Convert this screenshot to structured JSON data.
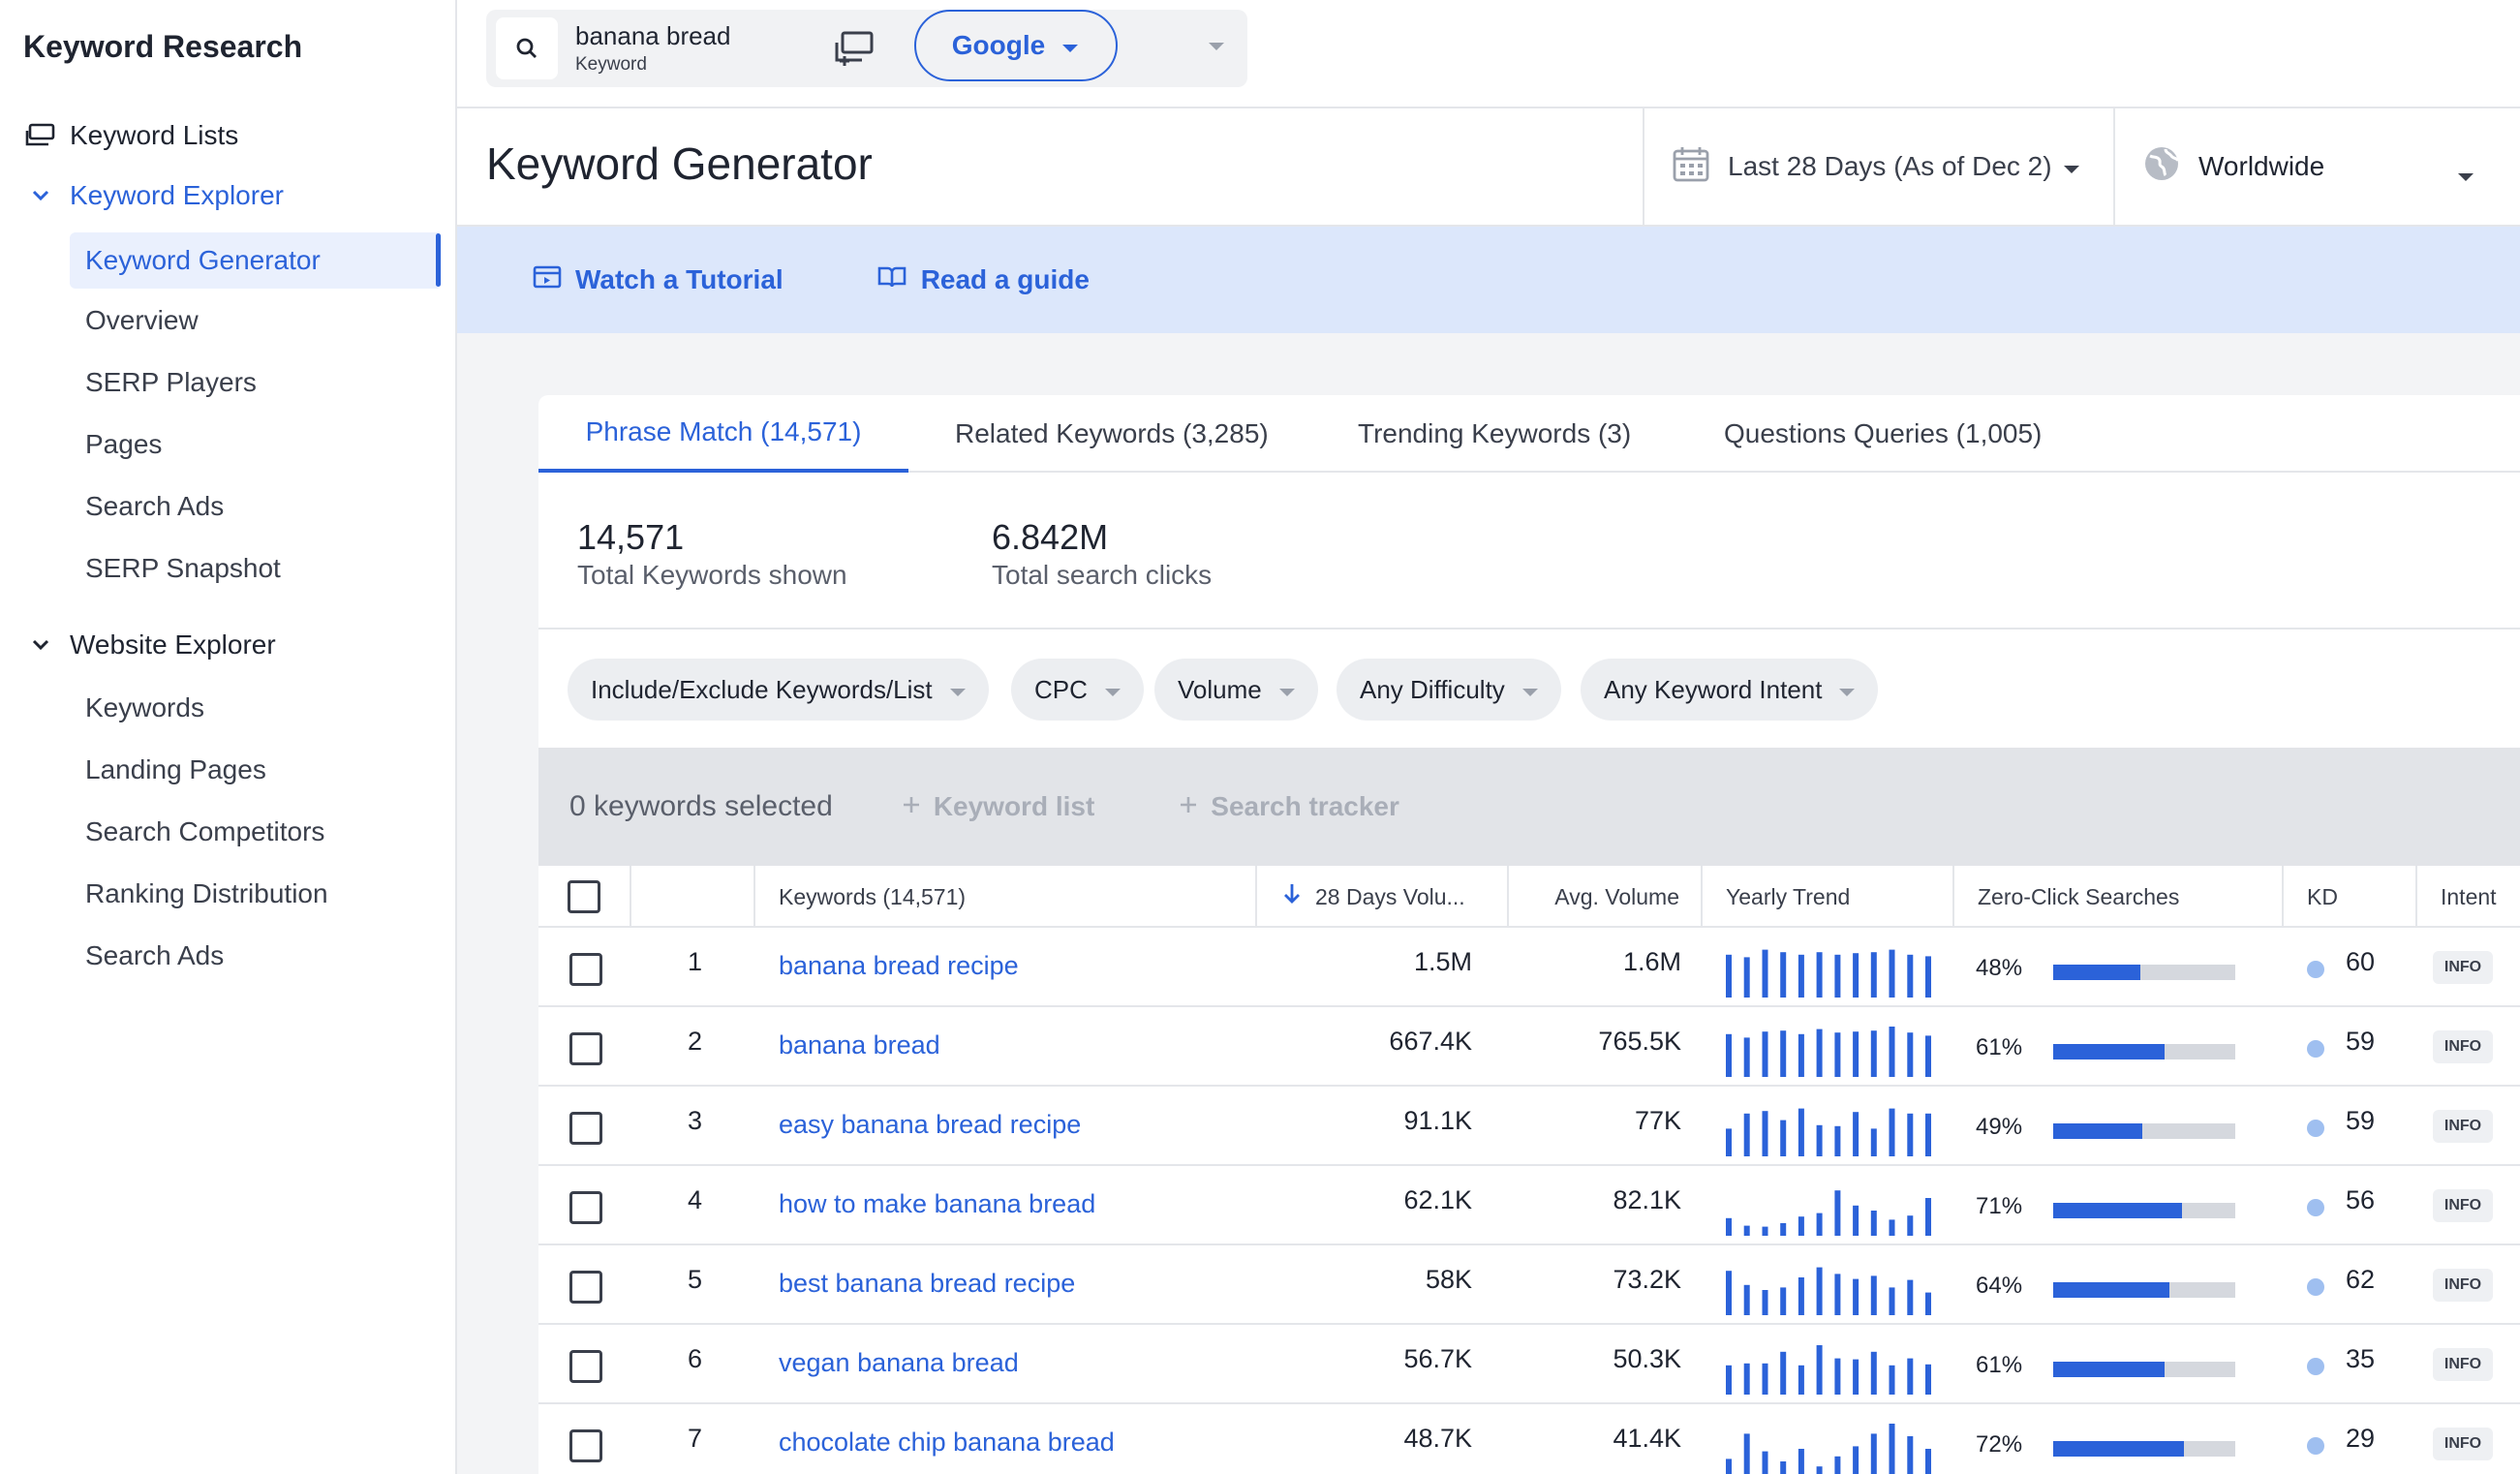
{
  "sidebar": {
    "title": "Keyword Research",
    "keyword_lists": "Keyword Lists",
    "keyword_explorer": "Keyword Explorer",
    "explorer_items": [
      "Keyword Generator",
      "Overview",
      "SERP Players",
      "Pages",
      "Search Ads",
      "SERP Snapshot"
    ],
    "website_explorer": "Website Explorer",
    "website_items": [
      "Keywords",
      "Landing Pages",
      "Search Competitors",
      "Ranking Distribution",
      "Search Ads"
    ]
  },
  "topbar": {
    "search_value": "banana bread",
    "search_label": "Keyword",
    "engine": "Google"
  },
  "header": {
    "title": "Keyword Generator",
    "date_filter": "Last 28 Days (As of Dec 2)",
    "geo_filter": "Worldwide"
  },
  "guide": {
    "tutorial": "Watch a Tutorial",
    "read_guide": "Read a guide"
  },
  "tabs": [
    "Phrase Match (14,571)",
    "Related Keywords (3,285)",
    "Trending Keywords (3)",
    "Questions Queries (1,005)"
  ],
  "stats": {
    "total_keywords_value": "14,571",
    "total_keywords_label": "Total Keywords shown",
    "total_clicks_value": "6.842M",
    "total_clicks_label": "Total search clicks"
  },
  "filters": [
    "Include/Exclude Keywords/List",
    "CPC",
    "Volume",
    "Any Difficulty",
    "Any Keyword Intent"
  ],
  "selection": {
    "count": "0 keywords selected",
    "keyword_list": "Keyword list",
    "search_tracker": "Search tracker"
  },
  "table": {
    "columns": {
      "keywords": "Keywords (14,571)",
      "volume28": "28 Days Volu...",
      "avg_volume": "Avg. Volume",
      "yearly_trend": "Yearly Trend",
      "zero_click": "Zero-Click Searches",
      "kd": "KD",
      "intent": "Intent"
    },
    "rows": [
      {
        "num": "1",
        "keyword": "banana bread recipe",
        "vol28": "1.5M",
        "avg": "1.6M",
        "zero": "48%",
        "zero_frac": 0.48,
        "kd": "60",
        "intent": "INFO",
        "trend": [
          0.85,
          0.8,
          0.95,
          0.9,
          0.85,
          0.9,
          0.85,
          0.88,
          0.9,
          0.95,
          0.85,
          0.82
        ]
      },
      {
        "num": "2",
        "keyword": "banana bread",
        "vol28": "667.4K",
        "avg": "765.5K",
        "zero": "61%",
        "zero_frac": 0.61,
        "kd": "59",
        "intent": "INFO",
        "trend": [
          0.85,
          0.78,
          0.9,
          0.92,
          0.85,
          0.95,
          0.88,
          0.9,
          0.92,
          1.0,
          0.88,
          0.82
        ]
      },
      {
        "num": "3",
        "keyword": "easy banana bread recipe",
        "vol28": "91.1K",
        "avg": "77K",
        "zero": "49%",
        "zero_frac": 0.49,
        "kd": "59",
        "intent": "INFO",
        "trend": [
          0.55,
          0.85,
          0.9,
          0.72,
          0.95,
          0.62,
          0.6,
          0.88,
          0.55,
          0.95,
          0.85,
          0.85
        ]
      },
      {
        "num": "4",
        "keyword": "how to make banana bread",
        "vol28": "62.1K",
        "avg": "82.1K",
        "zero": "71%",
        "zero_frac": 0.71,
        "kd": "56",
        "intent": "INFO",
        "trend": [
          0.35,
          0.2,
          0.18,
          0.25,
          0.38,
          0.45,
          0.9,
          0.6,
          0.5,
          0.32,
          0.4,
          0.75
        ]
      },
      {
        "num": "5",
        "keyword": "best banana bread recipe",
        "vol28": "58K",
        "avg": "73.2K",
        "zero": "64%",
        "zero_frac": 0.64,
        "kd": "62",
        "intent": "INFO",
        "trend": [
          0.88,
          0.6,
          0.5,
          0.55,
          0.75,
          0.95,
          0.82,
          0.72,
          0.78,
          0.55,
          0.7,
          0.45
        ]
      },
      {
        "num": "6",
        "keyword": "vegan banana bread",
        "vol28": "56.7K",
        "avg": "50.3K",
        "zero": "61%",
        "zero_frac": 0.61,
        "kd": "35",
        "intent": "INFO",
        "trend": [
          0.58,
          0.62,
          0.62,
          0.85,
          0.58,
          0.98,
          0.72,
          0.7,
          0.85,
          0.58,
          0.72,
          0.6
        ]
      },
      {
        "num": "7",
        "keyword": "chocolate chip banana bread",
        "vol28": "48.7K",
        "avg": "41.4K",
        "zero": "72%",
        "zero_frac": 0.72,
        "kd": "29",
        "intent": "INFO",
        "trend": [
          0.3,
          0.8,
          0.45,
          0.25,
          0.5,
          0.15,
          0.35,
          0.55,
          0.8,
          1.0,
          0.75,
          0.5
        ]
      }
    ]
  },
  "colors": {
    "accent": "#2b62d9",
    "bar_track": "#d5d8de",
    "kd_dot": "#9fbff0"
  }
}
